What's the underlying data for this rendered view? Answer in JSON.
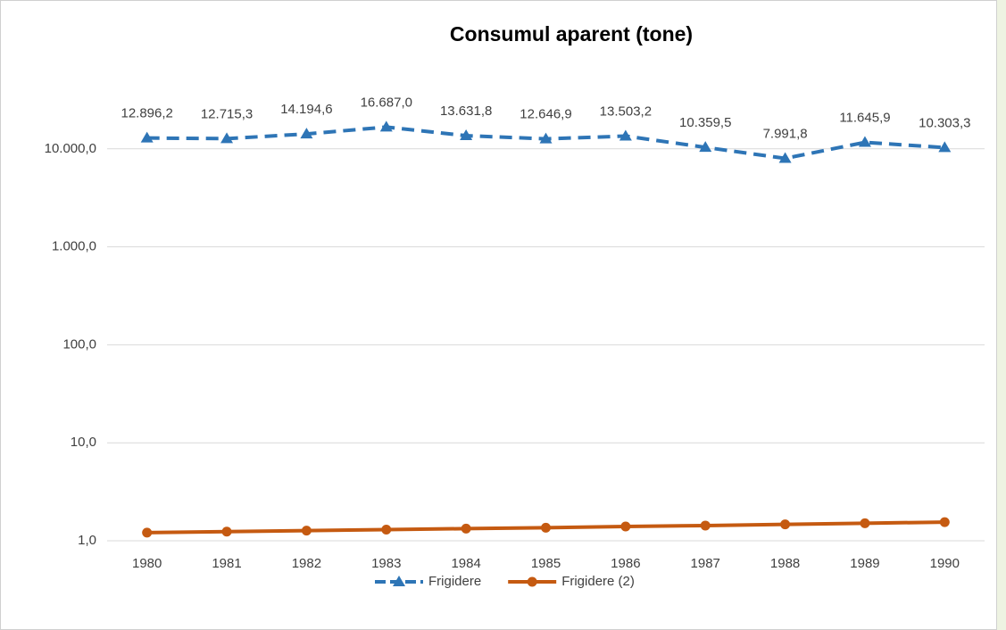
{
  "chart_data": {
    "type": "line",
    "title": "Consumul aparent (tone)",
    "categories": [
      "1980",
      "1981",
      "1982",
      "1983",
      "1984",
      "1985",
      "1986",
      "1987",
      "1988",
      "1989",
      "1990"
    ],
    "series": [
      {
        "name": "Frigidere",
        "color": "#2e75b6",
        "line_style": "dashed",
        "marker": "triangle",
        "values": [
          12896.2,
          12715.3,
          14194.6,
          16687.0,
          13631.8,
          12646.9,
          13503.2,
          10359.5,
          7991.8,
          11645.9,
          10303.3
        ],
        "value_labels": [
          "12.896,2",
          "12.715,3",
          "14.194,6",
          "16.687,0",
          "13.631,8",
          "12.646,9",
          "13.503,2",
          "10.359,5",
          "7.991,8",
          "11.645,9",
          "10.303,3"
        ]
      },
      {
        "name": "Frigidere (2)",
        "color": "#c55a11",
        "line_style": "solid",
        "marker": "circle",
        "values": [
          1.21,
          1.24,
          1.27,
          1.3,
          1.33,
          1.36,
          1.4,
          1.43,
          1.47,
          1.51,
          1.55
        ]
      }
    ],
    "y_scale": "log",
    "ylim": [
      1,
      100000
    ],
    "yticks": [
      {
        "value": 1,
        "label": "1,0"
      },
      {
        "value": 10,
        "label": "10,0"
      },
      {
        "value": 100,
        "label": "100,0"
      },
      {
        "value": 1000,
        "label": "1.000,0"
      },
      {
        "value": 10000,
        "label": "10.000,0"
      }
    ],
    "grid": true,
    "legend": "bottom"
  }
}
